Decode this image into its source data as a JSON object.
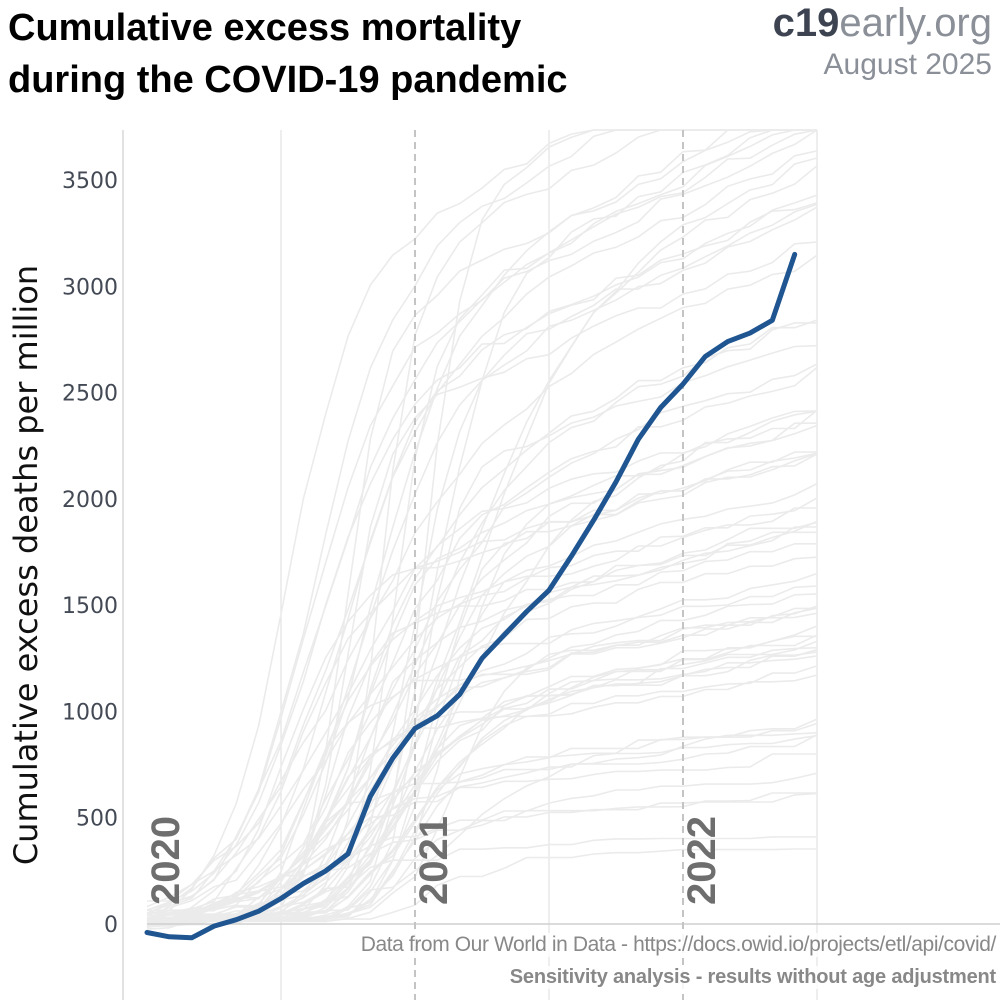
{
  "title_line1": "Cumulative excess mortality",
  "title_line2": "during the COVID-19 pandemic",
  "brand": {
    "bold": "c19",
    "light": "early.org",
    "date": "August 2025"
  },
  "source": "Data from Our World in Data - https://docs.owid.io/projects/etl/api/covid/",
  "note": "Sensitivity analysis - results without age adjustment",
  "colors": {
    "highlight": "#1f5591",
    "background_lines": "#ebebeb",
    "grid": "#e2e2e2",
    "year_line": "#c4c4c4",
    "year_label": "#6e6e6e"
  },
  "chart_data": {
    "type": "line",
    "title": "Cumulative excess mortality during the COVID-19 pandemic",
    "ylabel": "Cumulative excess deaths per million",
    "xlabel": "",
    "x_unit": "months since Jan 2020",
    "xlim": [
      0,
      29
    ],
    "ylim": [
      -100,
      3700
    ],
    "y_ticks": [
      0,
      500,
      1000,
      1500,
      2000,
      2500,
      3000,
      3500
    ],
    "year_markers": [
      {
        "label": "2020",
        "x": 0
      },
      {
        "label": "2021",
        "x": 12
      },
      {
        "label": "2022",
        "x": 24
      }
    ],
    "grid": true,
    "series": [
      {
        "x": [
          0,
          1,
          2,
          3,
          4,
          5,
          6,
          7,
          8,
          9,
          10,
          11,
          12,
          13,
          14,
          15,
          16,
          17,
          18,
          19,
          20,
          21,
          22,
          23,
          24,
          25,
          26,
          27,
          28,
          29
        ],
        "values": [
          -40,
          -60,
          -65,
          -10,
          20,
          60,
          120,
          190,
          250,
          330,
          600,
          780,
          920,
          980,
          1080,
          1250,
          1360,
          1470,
          1570,
          1730,
          1900,
          2080,
          2280,
          2430,
          2540,
          2670,
          2740,
          2780,
          2840,
          3150
        ]
      }
    ]
  }
}
